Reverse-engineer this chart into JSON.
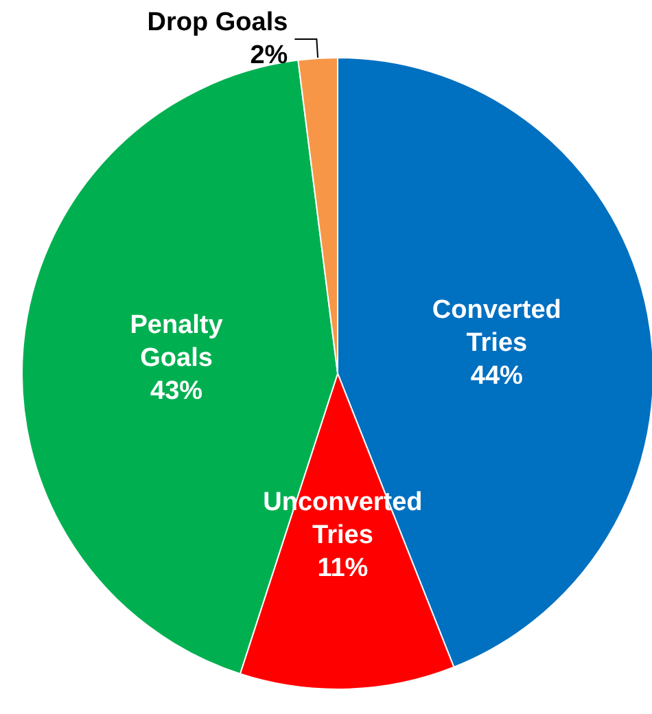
{
  "chart_data": {
    "type": "pie",
    "categories": [
      "Converted Tries",
      "Unconverted Tries",
      "Penalty Goals",
      "Drop Goals"
    ],
    "values": [
      44,
      11,
      43,
      2
    ],
    "colors": [
      "#0070c0",
      "#ff0000",
      "#00b050",
      "#f79646"
    ],
    "value_labels": [
      "44%",
      "11%",
      "43%",
      "2%"
    ],
    "legend": false
  }
}
